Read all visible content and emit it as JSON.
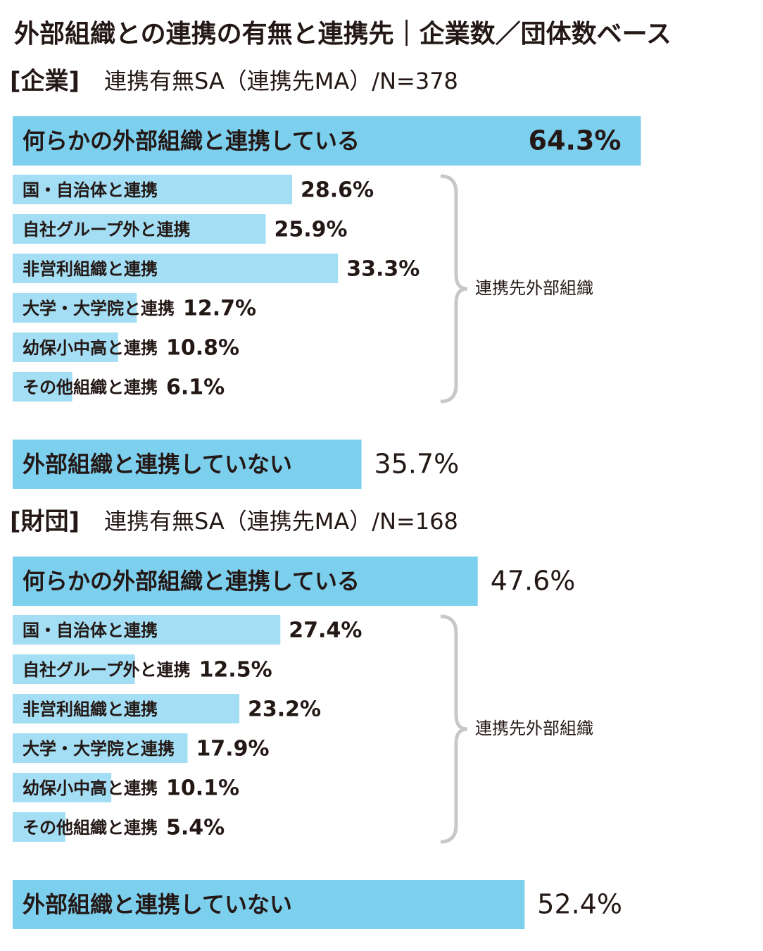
{
  "title": "外部組織との連携の有無と連携先｜企業数／団体数ベース",
  "chart_data": [
    {
      "type": "bar",
      "group": "[企業]",
      "subtitle": "連携有無SA（連携先MA）/N=378",
      "categories": [
        "何らかの外部組織と連携している",
        "国・自治体と連携",
        "自社グループ外と連携",
        "非営利組織と連携",
        "大学・大学院と連携",
        "幼保小中高と連携",
        "その他組織と連携",
        "外部組織と連携していない"
      ],
      "values": [
        64.3,
        28.6,
        25.9,
        33.3,
        12.7,
        10.8,
        6.1,
        35.7
      ],
      "value_labels": [
        "64.3%",
        "28.6%",
        "25.9%",
        "33.3%",
        "12.7%",
        "10.8%",
        "6.1%",
        "35.7%"
      ],
      "bracket_label": "連携先外部組織",
      "color": "#7dcfee",
      "sub_color": "#a3def4"
    },
    {
      "type": "bar",
      "group": "[財団]",
      "subtitle": "連携有無SA（連携先MA）/N=168",
      "categories": [
        "何らかの外部組織と連携している",
        "国・自治体と連携",
        "自社グループ外と連携",
        "非営利組織と連携",
        "大学・大学院と連携",
        "幼保小中高と連携",
        "その他組織と連携",
        "外部組織と連携していない"
      ],
      "values": [
        47.6,
        27.4,
        12.5,
        23.2,
        17.9,
        10.1,
        5.4,
        52.4
      ],
      "value_labels": [
        "47.6%",
        "27.4%",
        "12.5%",
        "23.2%",
        "17.9%",
        "10.1%",
        "5.4%",
        "52.4%"
      ],
      "bracket_label": "連携先外部組織",
      "color": "#7dcfee",
      "sub_color": "#a3def4"
    }
  ]
}
